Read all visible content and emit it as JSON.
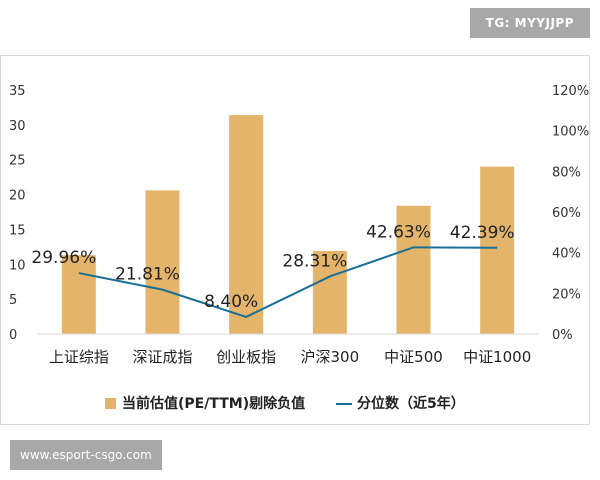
{
  "watermark_top": "TG: MYYJJPP",
  "watermark_bottom": "www.esport-csgo.com",
  "colors": {
    "bar": "#e4b46a",
    "line": "#1a6f96"
  },
  "chart_data": {
    "type": "bar",
    "categories": [
      "上证综指",
      "深证成指",
      "创业板指",
      "沪深300",
      "中证500",
      "中证1000"
    ],
    "series": [
      {
        "name": "当前估值(PE/TTM)剔除负值",
        "type": "bar",
        "axis": "left",
        "values": [
          11.3,
          20.6,
          31.4,
          11.9,
          18.4,
          24.0
        ]
      },
      {
        "name": "分位数（近5年）",
        "type": "line",
        "axis": "right",
        "values": [
          29.96,
          21.81,
          8.4,
          28.31,
          42.63,
          42.39
        ],
        "labels": [
          "29.96%",
          "21.81%",
          "8.40%",
          "28.31%",
          "42.63%",
          "42.39%"
        ]
      }
    ],
    "y_left": {
      "min": 0,
      "max": 35,
      "ticks": [
        "0",
        "5",
        "10",
        "15",
        "20",
        "25",
        "30",
        "35"
      ]
    },
    "y_right": {
      "min": 0,
      "max": 120,
      "ticks": [
        "0%",
        "20%",
        "40%",
        "60%",
        "80%",
        "100%",
        "120%"
      ]
    },
    "legend_position": "bottom",
    "grid": false
  }
}
